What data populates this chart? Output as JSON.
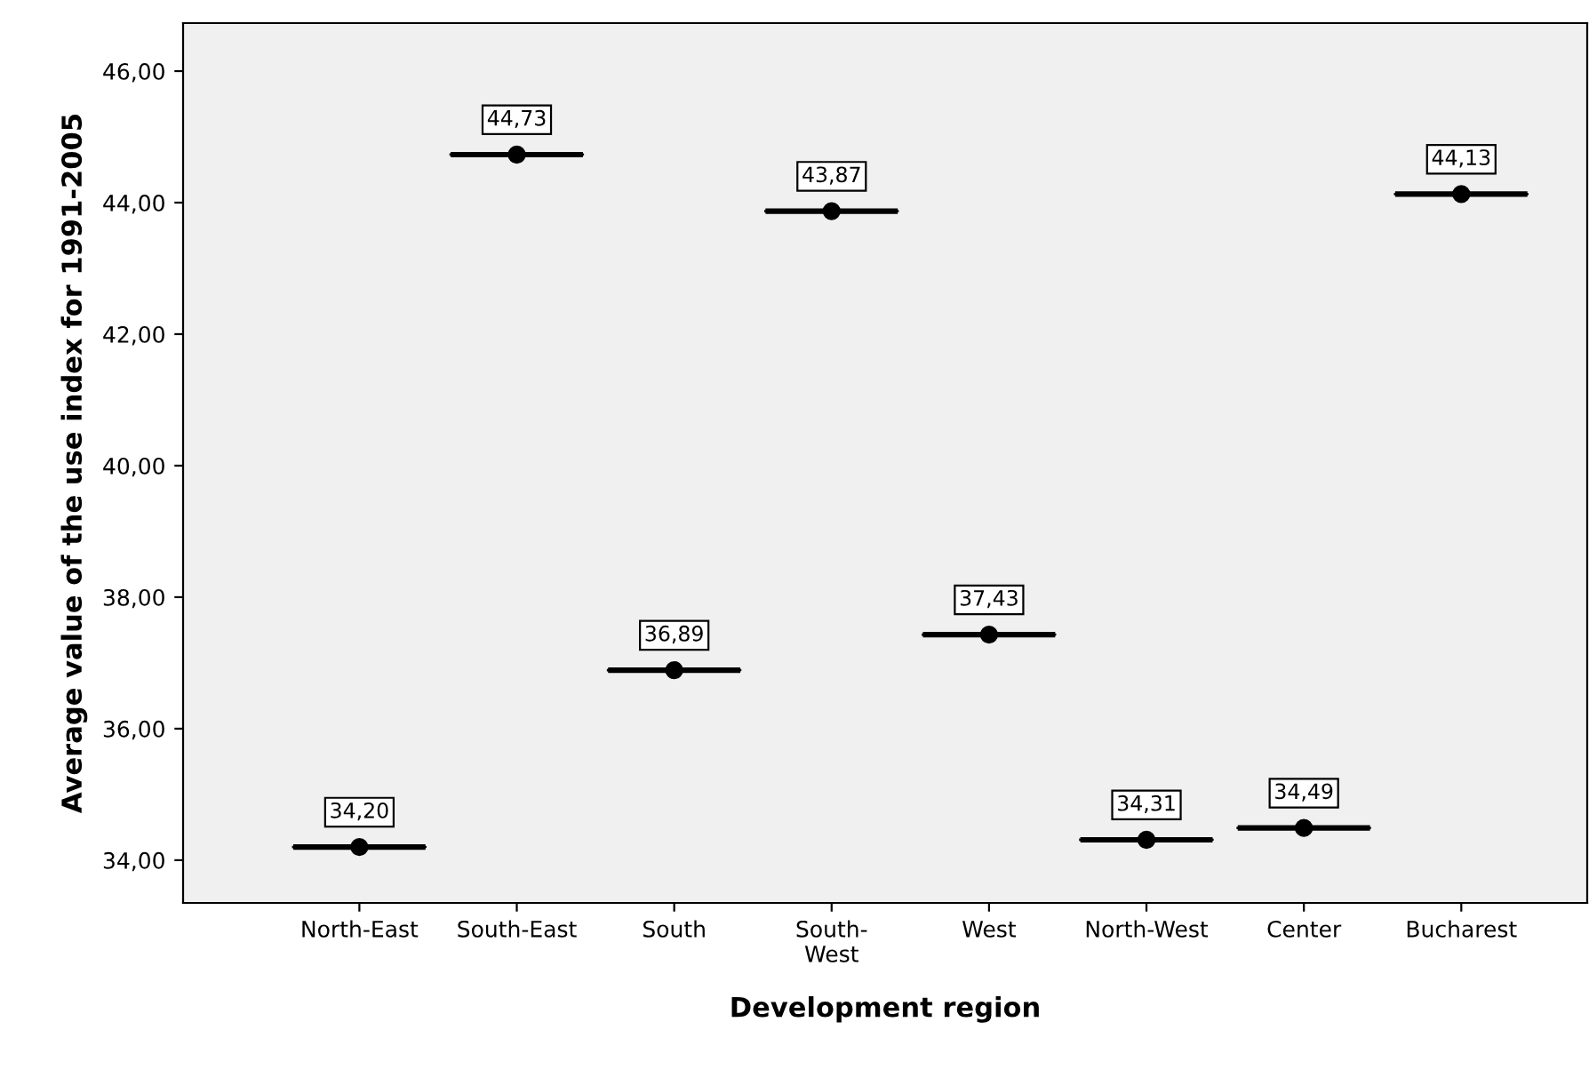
{
  "chart_data": {
    "type": "box",
    "xlabel": "Development region",
    "ylabel": "Average value of the use index for 1991-2005",
    "categories": [
      "North-East",
      "South-East",
      "South",
      "South-\nWest",
      "West",
      "North-West",
      "Center",
      "Bucharest"
    ],
    "boxes": [
      {
        "low": 34.2,
        "q1": 34.2,
        "median": 34.2,
        "q3": 34.2,
        "high": 34.2
      },
      {
        "low": 44.73,
        "q1": 44.73,
        "median": 44.73,
        "q3": 44.73,
        "high": 44.73
      },
      {
        "low": 36.89,
        "q1": 36.89,
        "median": 36.89,
        "q3": 36.89,
        "high": 36.89
      },
      {
        "low": 43.87,
        "q1": 43.87,
        "median": 43.87,
        "q3": 43.87,
        "high": 43.87
      },
      {
        "low": 37.43,
        "q1": 37.43,
        "median": 37.43,
        "q3": 37.43,
        "high": 37.43
      },
      {
        "low": 34.31,
        "q1": 34.31,
        "median": 34.31,
        "q3": 34.31,
        "high": 34.31
      },
      {
        "low": 34.49,
        "q1": 34.49,
        "median": 34.49,
        "q3": 34.49,
        "high": 34.49
      },
      {
        "low": 44.13,
        "q1": 44.13,
        "median": 44.13,
        "q3": 44.13,
        "high": 44.13
      }
    ],
    "series": [
      {
        "type": "scatter",
        "color": "#000000",
        "marker": "circle",
        "x": [
          "North-East",
          "South-East",
          "South",
          "South-\nWest",
          "West",
          "North-West",
          "Center",
          "Bucharest"
        ],
        "values": [
          34.2,
          44.73,
          36.89,
          43.87,
          37.43,
          34.31,
          34.49,
          44.13
        ],
        "value_labels": [
          "34,20",
          "44,73",
          "36,89",
          "43,87",
          "37,43",
          "34,31",
          "34,49",
          "44,13"
        ]
      }
    ],
    "color": "#000000",
    "ylim": [
      33.35,
      46.73
    ],
    "yticks": [
      {
        "value": 34,
        "label": "34,00"
      },
      {
        "value": 36,
        "label": "36,00"
      },
      {
        "value": 38,
        "label": "38,00"
      },
      {
        "value": 40,
        "label": "40,00"
      },
      {
        "value": 42,
        "label": "42,00"
      },
      {
        "value": 44,
        "label": "44,00"
      },
      {
        "value": 46,
        "label": "46,00"
      }
    ],
    "grid": false
  }
}
